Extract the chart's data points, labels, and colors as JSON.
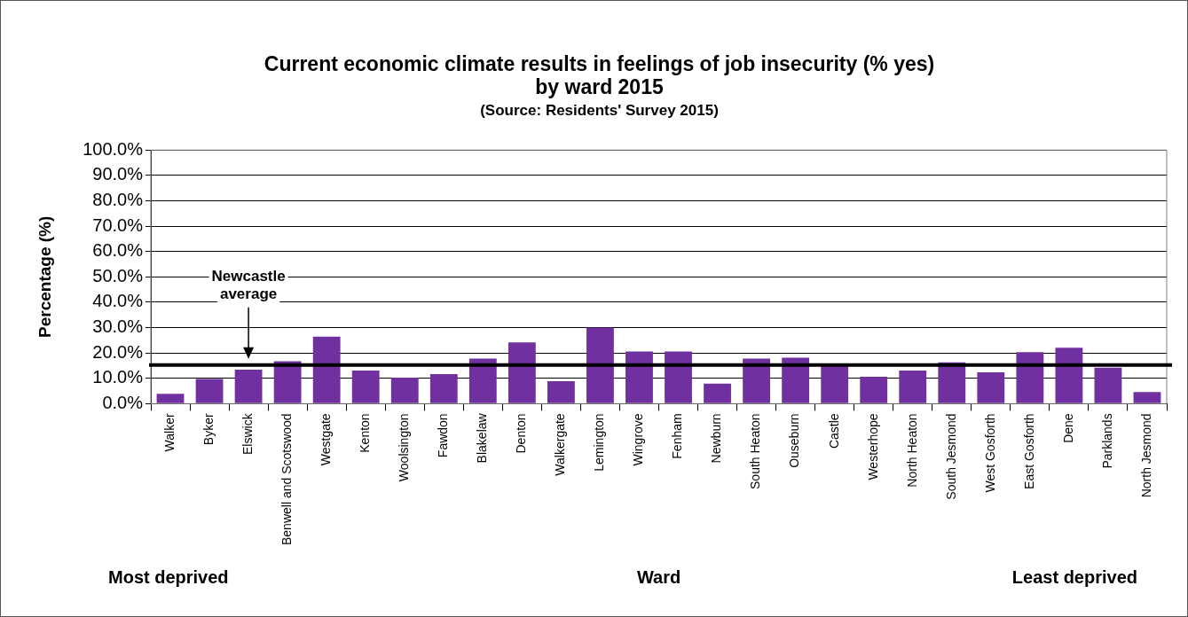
{
  "chart_data": {
    "type": "bar",
    "title": "Current economic climate results in feelings of job insecurity (% yes)\nby ward 2015",
    "subtitle": "(Source: Residents' Survey 2015)",
    "xlabel": "Ward",
    "ylabel": "Percentage (%)",
    "categories": [
      "Walker",
      "Byker",
      "Elswick",
      "Benwell and Scotswood",
      "Westgate",
      "Kenton",
      "Woolsington",
      "Fawdon",
      "Blakelaw",
      "Denton",
      "Walkergate",
      "Lemington",
      "Wingrove",
      "Fenham",
      "Newburn",
      "South Heaton",
      "Ouseburn",
      "Castle",
      "Westerhope",
      "North Heaton",
      "South Jesmond",
      "West Gosforth",
      "East Gosforth",
      "Dene",
      "Parklands",
      "North Jesmond"
    ],
    "values": [
      3.9,
      9.7,
      13.4,
      16.7,
      26.4,
      13.1,
      10.3,
      11.7,
      17.8,
      24.2,
      8.9,
      30.0,
      20.6,
      20.6,
      7.9,
      17.8,
      18.1,
      15.4,
      10.6,
      13.1,
      16.3,
      12.4,
      20.3,
      22.1,
      14.2,
      4.6
    ],
    "color": "#7030a0",
    "ylim": [
      0,
      100
    ],
    "yticks": [
      {
        "value": 0,
        "label": "0.0%"
      },
      {
        "value": 10,
        "label": "10.0%"
      },
      {
        "value": 20,
        "label": "20.0%"
      },
      {
        "value": 30,
        "label": "30.0%"
      },
      {
        "value": 40,
        "label": "40.0%"
      },
      {
        "value": 50,
        "label": "50.0%"
      },
      {
        "value": 60,
        "label": "60.0%"
      },
      {
        "value": 70,
        "label": "70.0%"
      },
      {
        "value": 80,
        "label": "80.0%"
      },
      {
        "value": 90,
        "label": "90.0%"
      },
      {
        "value": 100,
        "label": "100.0%"
      }
    ],
    "grid": "y",
    "legend": false,
    "ref_lines": [
      {
        "axis": "y",
        "value": 15.2,
        "label": "Newcastle average",
        "color": "#000000"
      }
    ],
    "annotations": [
      "Most deprived",
      "Least deprived"
    ]
  }
}
